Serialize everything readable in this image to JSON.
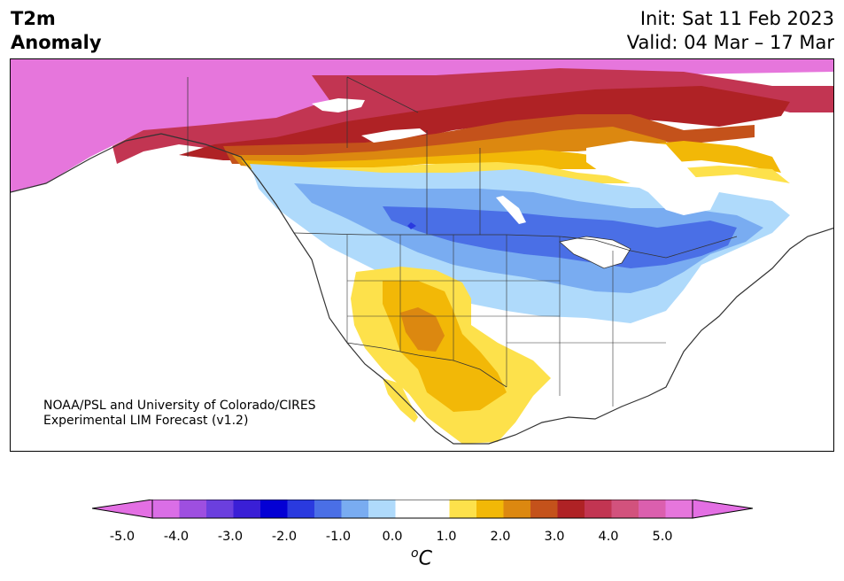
{
  "header": {
    "variable": "T2m",
    "subtitle": "Anomaly",
    "init": "Init: Sat 11 Feb 2023",
    "valid": "Valid: 04 Mar – 17 Mar"
  },
  "credit": {
    "line1": "NOAA/PSL and University of Colorado/CIRES",
    "line2": "Experimental LIM Forecast (v1.2)"
  },
  "colorbar": {
    "unit_super": "o",
    "unit_main": "C",
    "ticks": [
      "-5.0",
      "-4.0",
      "-3.0",
      "-2.0",
      "-1.0",
      "0.0",
      "1.0",
      "2.0",
      "3.0",
      "4.0",
      "5.0"
    ],
    "under_color": "#e36fe3",
    "over_color": "#e36fe3",
    "colors": [
      "#da6ee6",
      "#9e4fe0",
      "#6b3fde",
      "#3a1fd6",
      "#0400d4",
      "#2a3adf",
      "#4a6fe6",
      "#79acf1",
      "#afdafb",
      "#ffffff",
      "#ffffff",
      "#fde14b",
      "#f2b807",
      "#dc8810",
      "#c4521b",
      "#af2225",
      "#c23552",
      "#d2527d",
      "#db5fae",
      "#e676dc"
    ]
  },
  "map": {
    "region": "North America",
    "colors": {
      "extreme_warm": "#e676dc",
      "very_warm": "#c23552",
      "warm_red": "#af2225",
      "warm_orange": "#c4521b",
      "warm_amber": "#dc8810",
      "warm_gold": "#f2b807",
      "warm_yellow": "#fde14b",
      "cool_light": "#afdafb",
      "cool_mid": "#79acf1",
      "cool_blue": "#4a6fe6",
      "cool_deep": "#2a3adf",
      "land_border": "#333333"
    }
  }
}
